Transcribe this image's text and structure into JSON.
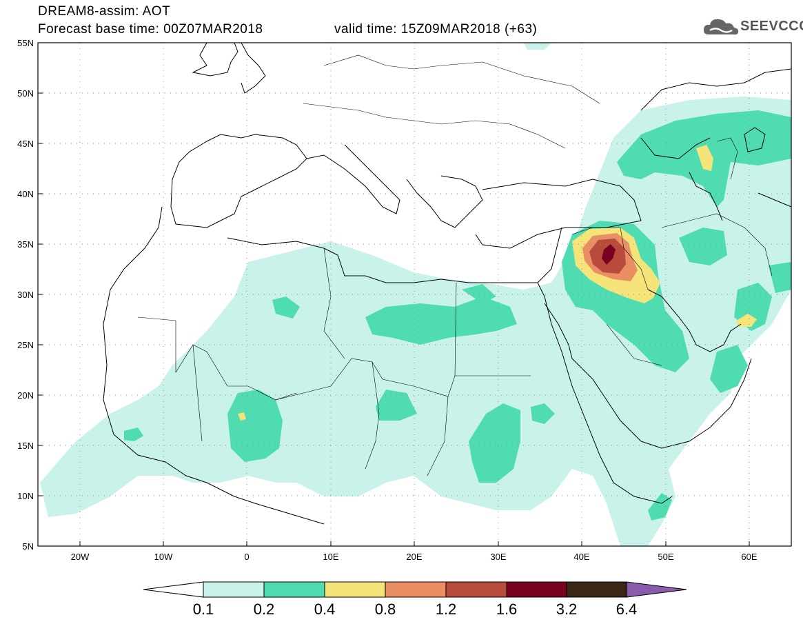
{
  "title": {
    "line1": "DREAM8-assim: AOT",
    "base_time": "Forecast base time: 00Z07MAR2018",
    "valid_time": "valid time: 15Z09MAR2018 (+63)"
  },
  "logo": {
    "text": "SEEVCCC",
    "icon": "cloud-icon"
  },
  "map": {
    "lon_range": [
      -25,
      65
    ],
    "lat_range": [
      5,
      55
    ],
    "lat_labels": [
      "55N",
      "50N",
      "45N",
      "40N",
      "35N",
      "30N",
      "25N",
      "20N",
      "15N",
      "10N",
      "5N"
    ],
    "lon_labels": [
      "20W",
      "10W",
      "0",
      "10E",
      "20E",
      "30E",
      "40E",
      "50E",
      "60E"
    ]
  },
  "colorbar": {
    "labels": [
      "0.1",
      "0.2",
      "0.4",
      "0.8",
      "1.2",
      "1.6",
      "3.2",
      "6.4"
    ],
    "colors": [
      "#c8f2ea",
      "#4fdcb0",
      "#f5e47a",
      "#ea8e64",
      "#b84c3c",
      "#7a0020",
      "#3a2614",
      "#8a5cac"
    ]
  }
}
